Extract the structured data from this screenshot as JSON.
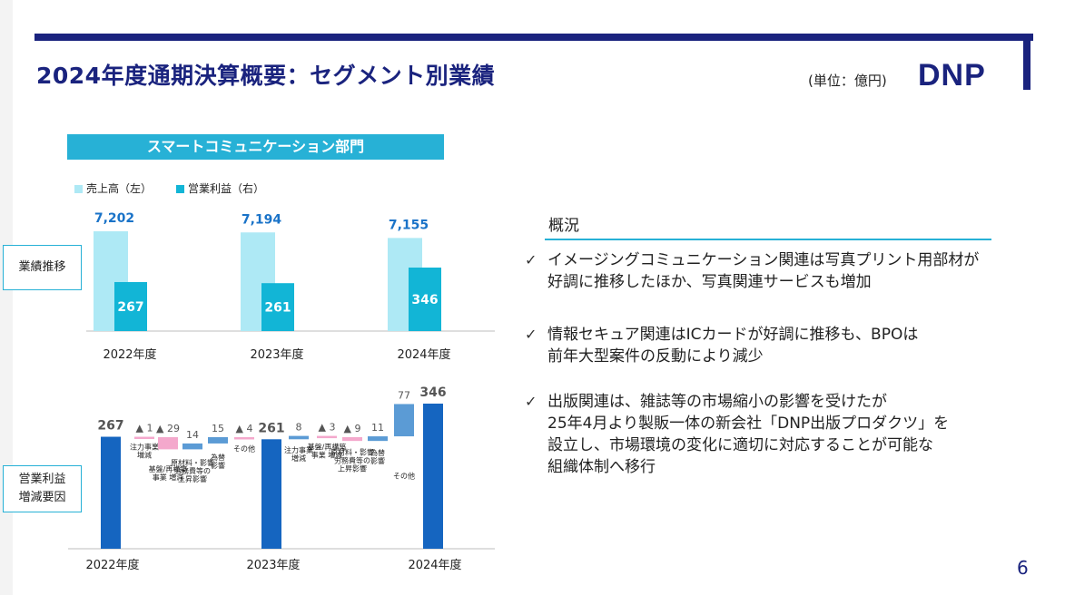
{
  "header": {
    "title": "2024年度通期決算概要：セグメント別業績",
    "unit": "(単位：億円)",
    "logo": "DNP"
  },
  "segment": {
    "banner": "スマートコミュニケーション部門"
  },
  "legend": {
    "sales": "売上高（左）",
    "op_profit": "営業利益（右）"
  },
  "side_labels": {
    "performance": "業績推移",
    "op_change": "営業利益\n増減要因"
  },
  "colors": {
    "sales": "#aee9f5",
    "op_profit": "#12b5d6",
    "waterfall_total": "#1565c0",
    "waterfall_pos": "#5b9bd5",
    "waterfall_neg": "#f4a8cc",
    "accent": "#1a237e",
    "banner": "#27b1d6"
  },
  "chart_data": [
    {
      "type": "bar",
      "categories": [
        "2022年度",
        "2023年度",
        "2024年度"
      ],
      "series": [
        {
          "name": "売上高（左）",
          "values": [
            7202,
            7194,
            7155
          ],
          "labels": [
            "7,202",
            "7,194",
            "7,155"
          ]
        },
        {
          "name": "営業利益（右）",
          "values": [
            267,
            261,
            346
          ],
          "labels": [
            "267",
            "261",
            "346"
          ]
        }
      ]
    },
    {
      "type": "waterfall",
      "steps": [
        {
          "kind": "total",
          "value": 267,
          "label": "267",
          "name": "",
          "category": "2022年度"
        },
        {
          "kind": "neg",
          "value": -1,
          "label": "▲ 1",
          "name": "注力事業\n増減"
        },
        {
          "kind": "neg",
          "value": -29,
          "label": "▲ 29",
          "name": "基盤/再構築\n事業 増減"
        },
        {
          "kind": "pos",
          "value": 14,
          "label": "14",
          "name": "原材料・影響\n労務費等の\n上昇影響"
        },
        {
          "kind": "pos",
          "value": 15,
          "label": "15",
          "name": "為替\n影響"
        },
        {
          "kind": "neg",
          "value": -4,
          "label": "▲ 4",
          "name": "その他"
        },
        {
          "kind": "total",
          "value": 261,
          "label": "261",
          "name": "",
          "category": "2023年度"
        },
        {
          "kind": "pos",
          "value": 8,
          "label": "8",
          "name": "注力事業\n増減"
        },
        {
          "kind": "neg",
          "value": -3,
          "label": "▲ 3",
          "name": "基盤/再構築\n事業 増減"
        },
        {
          "kind": "neg",
          "value": -9,
          "label": "▲ 9",
          "name": "原材料・影響\n労務費等の\n上昇影響"
        },
        {
          "kind": "pos",
          "value": 11,
          "label": "11",
          "name": "為替\n影響"
        },
        {
          "kind": "pos",
          "value": 77,
          "label": "77",
          "name": "その他"
        },
        {
          "kind": "total",
          "value": 346,
          "label": "346",
          "name": "",
          "category": "2024年度"
        }
      ]
    }
  ],
  "overview": {
    "title": "概況",
    "bullets": [
      "イメージングコミュニケーション関連は写真プリント用部材が\n好調に推移したほか、写真関連サービスも増加",
      "情報セキュア関連はICカードが好調に推移も、BPOは\n前年大型案件の反動により減少",
      "出版関連は、雑誌等の市場縮小の影響を受けたが\n25年4月より製販一体の新会社「DNP出版プロダクツ」を\n設立し、市場環境の変化に適切に対応することが可能な\n組織体制へ移行"
    ]
  },
  "page_number": "6"
}
